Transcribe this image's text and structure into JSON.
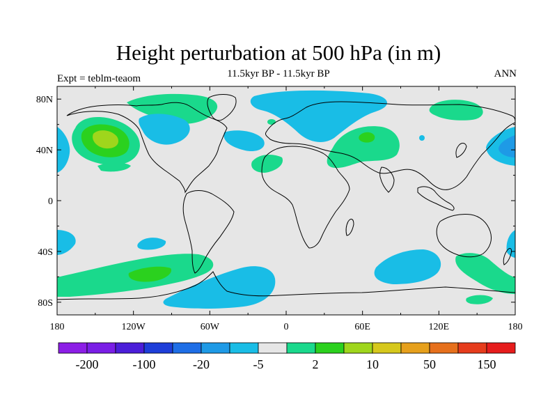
{
  "title": "Height perturbation at 500 hPa (in m)",
  "subtitle": "11.5kyr BP - 11.5kyr BP",
  "left_label": "Expt = teblm-teaom",
  "right_label": "ANN",
  "colors": {
    "background_gray": "#e6e6e6",
    "light_blue": "#19bde6",
    "light_green": "#1ad98c",
    "green": "#2bd11e",
    "yellow_green": "#9fd61c",
    "coast": "#000000"
  },
  "map": {
    "projection": "cylindrical-equidistant",
    "lon_range": [
      -180,
      180
    ],
    "lat_range": [
      -90,
      90
    ],
    "lat_ticks": [
      {
        "value": 80,
        "label": "80N"
      },
      {
        "value": 40,
        "label": "40N"
      },
      {
        "value": 0,
        "label": "0"
      },
      {
        "value": -40,
        "label": "40S"
      },
      {
        "value": -80,
        "label": "80S"
      }
    ],
    "lon_ticks": [
      {
        "value": -180,
        "label": "180"
      },
      {
        "value": -120,
        "label": "120W"
      },
      {
        "value": -60,
        "label": "60W"
      },
      {
        "value": 0,
        "label": "0"
      },
      {
        "value": 60,
        "label": "60E"
      },
      {
        "value": 120,
        "label": "120E"
      },
      {
        "value": 180,
        "label": "180"
      }
    ]
  },
  "colorbar": {
    "colors": [
      "#8c1ee6",
      "#7a1ee6",
      "#4b1ed9",
      "#1e3ed9",
      "#1e6ee6",
      "#1e9ae6",
      "#19bde6",
      "#e6e6e6",
      "#1ad98c",
      "#2bd11e",
      "#9fd61c",
      "#d6c81c",
      "#e6a01c",
      "#e6701c",
      "#e63c1c",
      "#e61c1c"
    ],
    "labels": [
      {
        "after_box": 2,
        "text": "-200"
      },
      {
        "after_box": 4,
        "text": "-100"
      },
      {
        "after_box": 6,
        "text": "-20"
      },
      {
        "after_box": 8,
        "text": "-5"
      },
      {
        "after_box": 10,
        "text": "2"
      },
      {
        "after_box": 12,
        "text": "10"
      },
      {
        "after_box": 14,
        "text": "50"
      },
      {
        "after_box": 16,
        "text": "150"
      }
    ]
  }
}
